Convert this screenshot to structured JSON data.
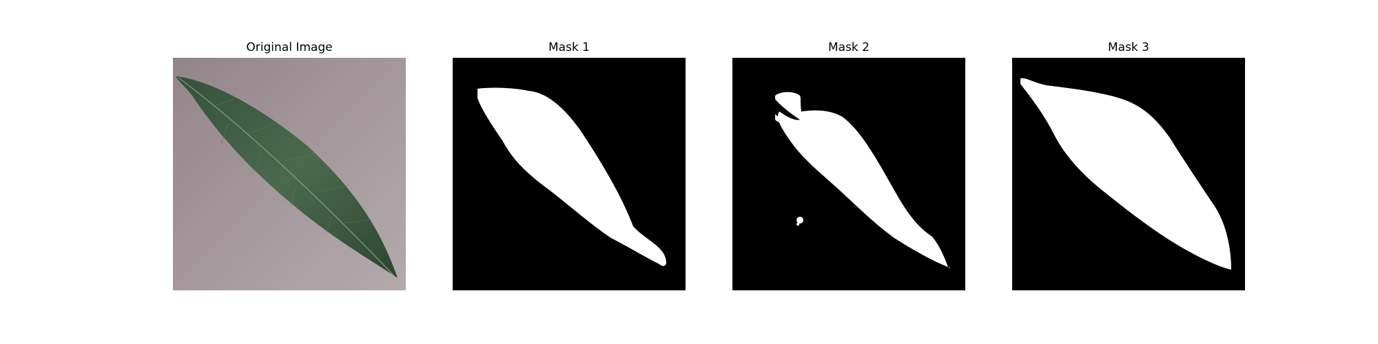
{
  "panels": [
    {
      "title": "Original Image"
    },
    {
      "title": "Mask 1"
    },
    {
      "title": "Mask 2"
    },
    {
      "title": "Mask 3"
    }
  ],
  "colors": {
    "background_surface": "#9c8e93",
    "leaf_dark": "#2e4a32",
    "leaf_mid": "#4b6a4b",
    "mask_background": "#000000",
    "mask_foreground": "#ffffff"
  }
}
